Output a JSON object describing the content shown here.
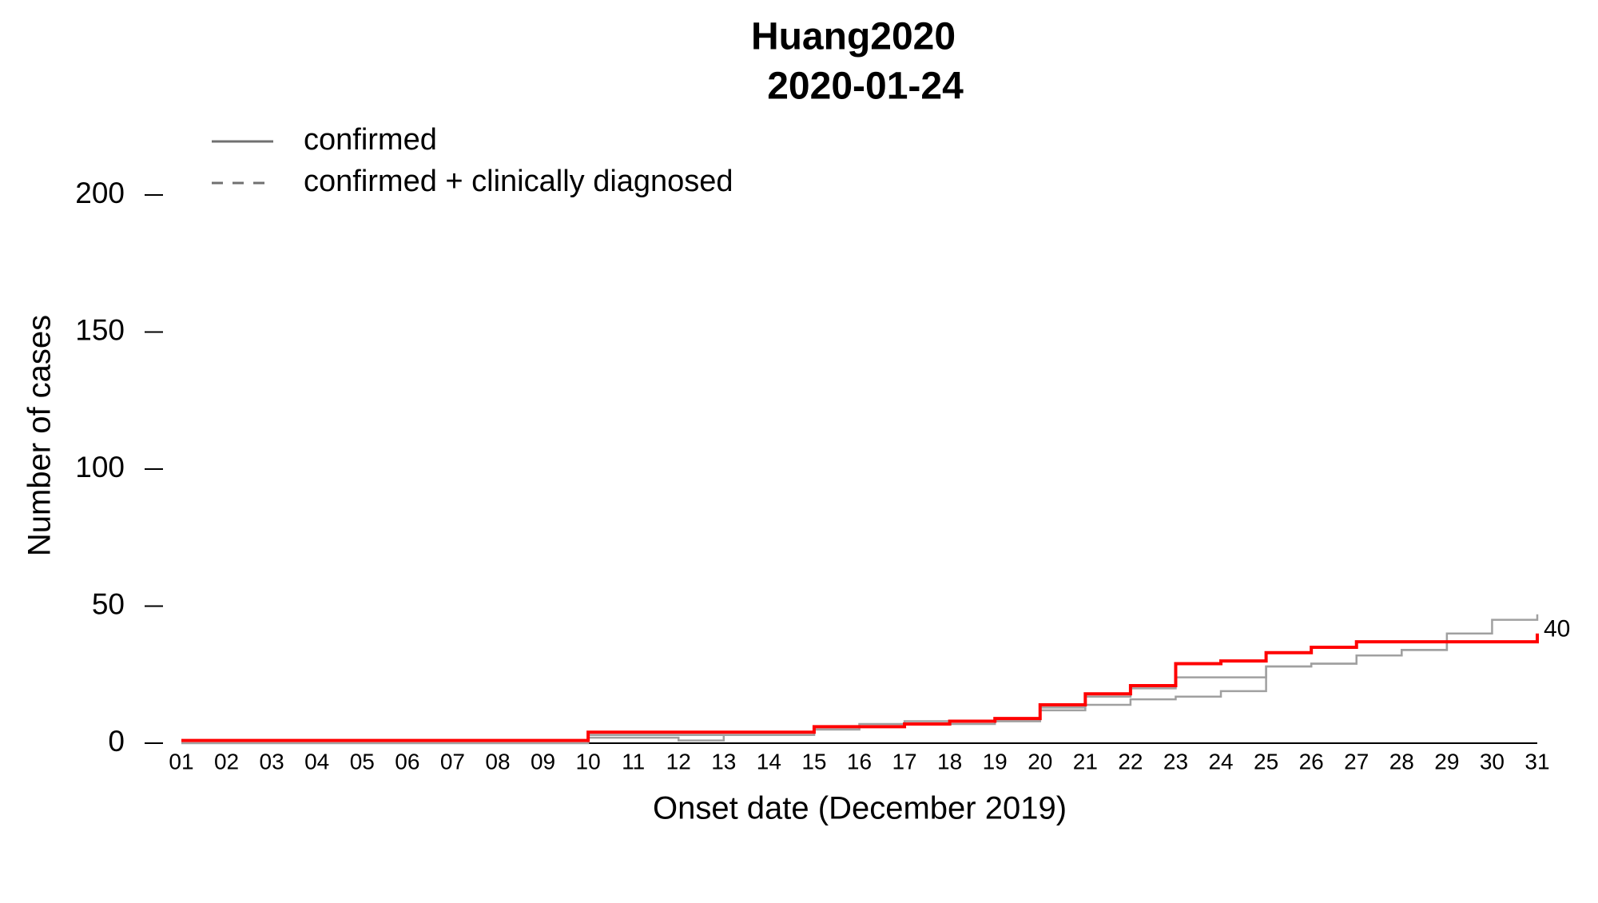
{
  "chart_data": {
    "type": "step",
    "title": "Huang2020",
    "subtitle": "2020-01-24",
    "x_label": "Onset date (December 2019)",
    "y_label": "Number of cases",
    "categories": [
      "01",
      "02",
      "03",
      "04",
      "05",
      "06",
      "07",
      "08",
      "09",
      "10",
      "11",
      "12",
      "13",
      "14",
      "15",
      "16",
      "17",
      "18",
      "19",
      "20",
      "21",
      "22",
      "23",
      "24",
      "25",
      "26",
      "27",
      "28",
      "29",
      "30",
      "31"
    ],
    "ylim": [
      0,
      200
    ],
    "yticks": [
      0,
      50,
      100,
      150,
      200
    ],
    "series": [
      {
        "name": "confirmed",
        "color": "#a0a0a0",
        "dash": false,
        "values": [
          0,
          0,
          0,
          0,
          0,
          0,
          0,
          0,
          0,
          2,
          2,
          1,
          3,
          3,
          5,
          7,
          8,
          8,
          8,
          12,
          14,
          16,
          17,
          19,
          28,
          29,
          32,
          34,
          40,
          45,
          47
        ]
      },
      {
        "name": "confirmed + clinically diagnosed",
        "color": "#a0a0a0",
        "dash": true,
        "values": [
          1,
          1,
          1,
          1,
          1,
          1,
          1,
          1,
          1,
          3,
          3,
          3,
          3,
          3,
          5,
          6,
          7,
          7,
          8,
          13,
          17,
          20,
          24,
          24,
          28,
          29,
          32,
          34,
          37,
          37,
          37
        ]
      },
      {
        "color": "#ff0000",
        "values": [
          1,
          1,
          1,
          1,
          1,
          1,
          1,
          1,
          1,
          4,
          4,
          4,
          4,
          4,
          6,
          6,
          7,
          8,
          9,
          14,
          18,
          21,
          29,
          30,
          33,
          35,
          37,
          37,
          37,
          37,
          40
        ],
        "end_label": 40
      }
    ],
    "legend_color": "#707070"
  }
}
